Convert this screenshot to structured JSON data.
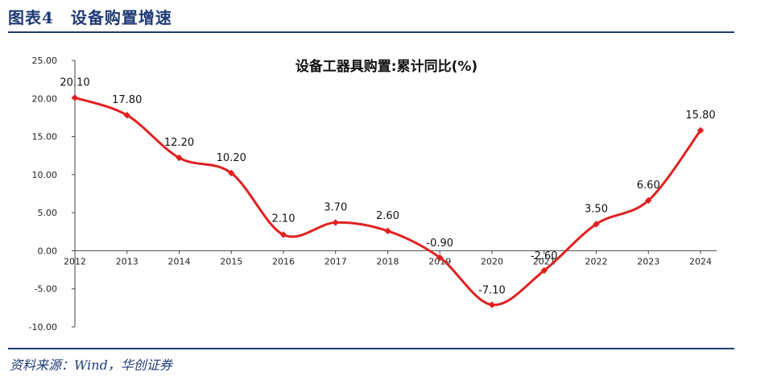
{
  "figure": {
    "title": "图表4　设备购置增速",
    "source": "资料来源：Wind，华创证券"
  },
  "chart_data": {
    "type": "line",
    "title": "设备工器具购置:累计同比(%)",
    "x": [
      "2012",
      "2013",
      "2014",
      "2015",
      "2016",
      "2017",
      "2018",
      "2019",
      "2020",
      "2021",
      "2022",
      "2023",
      "2024"
    ],
    "series": [
      {
        "values": [
          20.1,
          17.8,
          12.2,
          10.2,
          2.1,
          3.7,
          2.6,
          -0.9,
          -7.1,
          -2.6,
          3.5,
          6.6,
          15.8
        ]
      }
    ],
    "data_labels": [
      "20.10",
      "17.80",
      "12.20",
      "10.20",
      "2.10",
      "3.70",
      "2.60",
      "-0.90",
      "-7.10",
      "-2.60",
      "3.50",
      "6.60",
      "15.80"
    ],
    "yticks": [
      "25.00",
      "20.00",
      "15.00",
      "10.00",
      "5.00",
      "0.00",
      "-5.00",
      "-10.00"
    ],
    "ylim": [
      -10,
      25
    ],
    "grid": false,
    "line_color": "#e02020"
  }
}
